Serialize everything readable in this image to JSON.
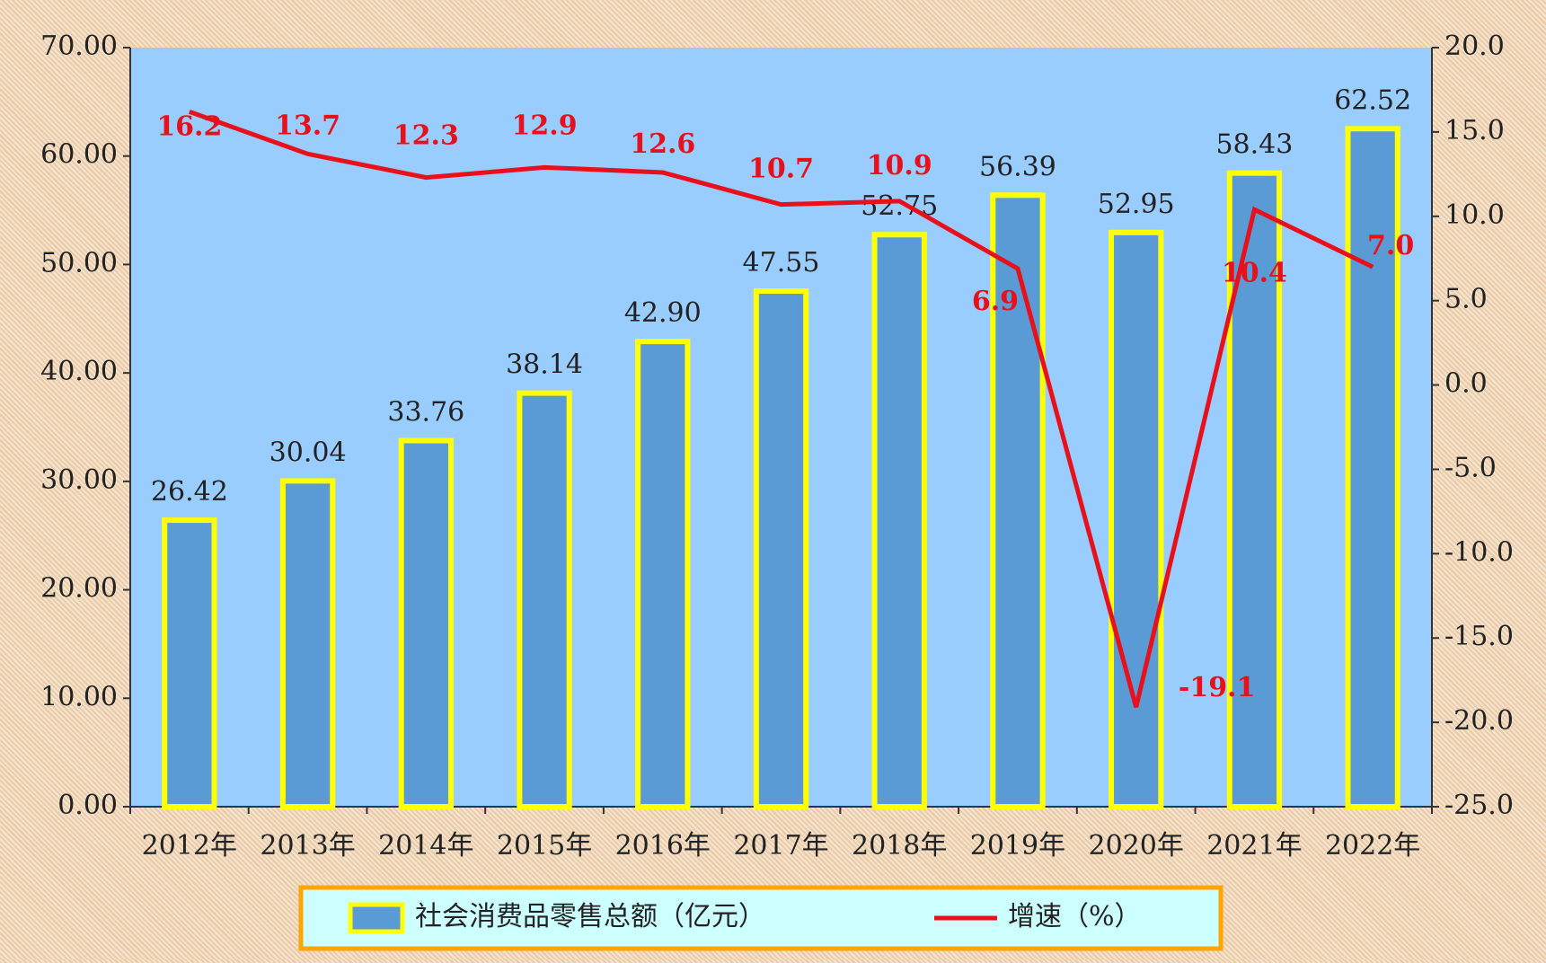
{
  "chart_data": {
    "type": "bar-line",
    "categories": [
      "2012年",
      "2013年",
      "2014年",
      "2015年",
      "2016年",
      "2017年",
      "2018年",
      "2019年",
      "2020年",
      "2021年",
      "2022年"
    ],
    "series": [
      {
        "name": "社会消费品零售总额（亿元）",
        "type": "bar",
        "color": "#5b9bd5",
        "edge_color": "#ffff00",
        "values": [
          26.42,
          30.04,
          33.76,
          38.14,
          42.9,
          47.55,
          52.75,
          56.39,
          52.95,
          58.43,
          62.52
        ],
        "value_labels": [
          "26.42",
          "30.04",
          "33.76",
          "38.14",
          "42.90",
          "47.55",
          "52.75",
          "56.39",
          "52.95",
          "58.43",
          "62.52"
        ]
      },
      {
        "name": "增速（%）",
        "type": "line",
        "axis": "y2",
        "color": "#e8101a",
        "values": [
          16.2,
          13.7,
          12.3,
          12.9,
          12.6,
          10.7,
          10.9,
          6.9,
          -19.1,
          10.4,
          7.0
        ],
        "value_labels": [
          "16.2",
          "13.7",
          "12.3",
          "12.9",
          "12.6",
          "10.7",
          "10.9",
          "6.9",
          "-19.1",
          "10.4",
          "7.0"
        ]
      }
    ],
    "ylim": [
      0,
      70
    ],
    "yticks": [
      {
        "value": 0,
        "label": "0.00"
      },
      {
        "value": 10,
        "label": "10.00"
      },
      {
        "value": 20,
        "label": "20.00"
      },
      {
        "value": 30,
        "label": "30.00"
      },
      {
        "value": 40,
        "label": "40.00"
      },
      {
        "value": 50,
        "label": "50.00"
      },
      {
        "value": 60,
        "label": "60.00"
      },
      {
        "value": 70,
        "label": "70.00"
      }
    ],
    "y2lim": [
      -25,
      20
    ],
    "y2ticks": [
      {
        "value": -25,
        "label": "-25.0"
      },
      {
        "value": -20,
        "label": "-20.0"
      },
      {
        "value": -15,
        "label": "-15.0"
      },
      {
        "value": -10,
        "label": "-10.0"
      },
      {
        "value": -5,
        "label": "-5.0"
      },
      {
        "value": 0,
        "label": "0.0"
      },
      {
        "value": 5,
        "label": "5.0"
      },
      {
        "value": 10,
        "label": "10.0"
      },
      {
        "value": 15,
        "label": "15.0"
      },
      {
        "value": 20,
        "label": "20.0"
      }
    ],
    "grid": false
  }
}
